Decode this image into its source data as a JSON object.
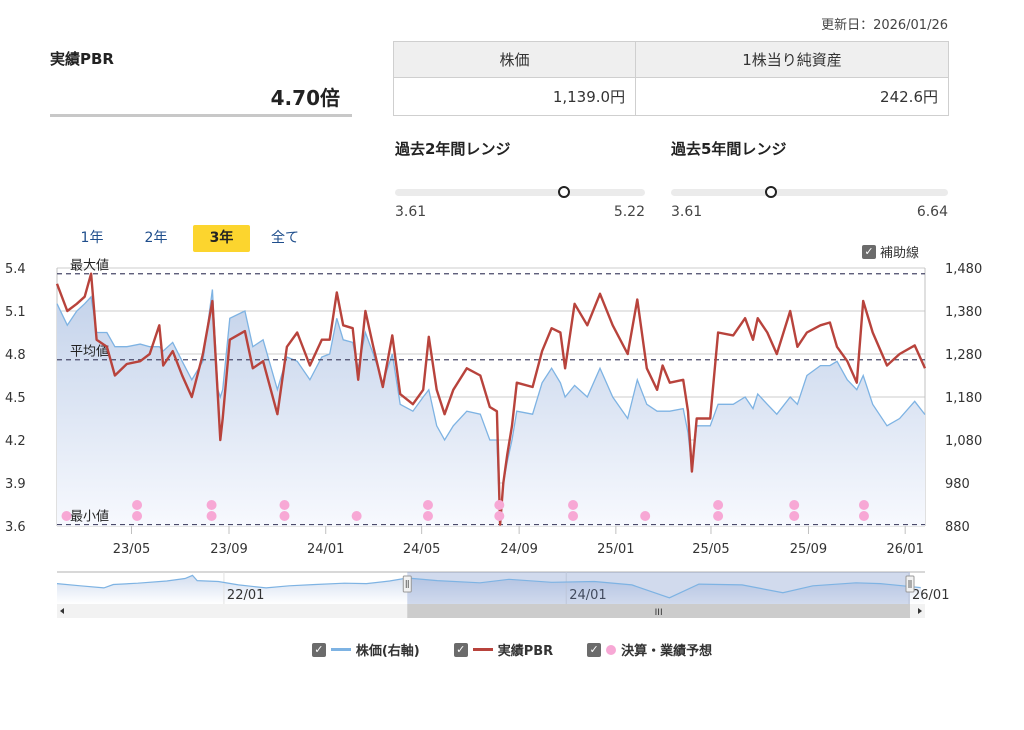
{
  "updated": "更新日：2026/01/26",
  "pbr": {
    "label": "実績PBR",
    "value": "4.70倍"
  },
  "info_table": {
    "headers": [
      "株価",
      "1株当り純資産"
    ],
    "values": [
      "1,139.0円",
      "242.6円"
    ]
  },
  "ranges": [
    {
      "title": "過去2年間レンジ",
      "min": "3.61",
      "max": "5.22",
      "min_value": 3.61,
      "max_value": 5.22,
      "current": 4.7
    },
    {
      "title": "過去5年間レンジ",
      "min": "3.61",
      "max": "6.64",
      "min_value": 3.61,
      "max_value": 6.64,
      "current": 4.7
    }
  ],
  "period_tabs": [
    {
      "label": "1年",
      "active": false
    },
    {
      "label": "2年",
      "active": false
    },
    {
      "label": "3年",
      "active": true
    },
    {
      "label": "全て",
      "active": false
    }
  ],
  "aux_lines": {
    "label": "補助線",
    "checked": true
  },
  "legend": [
    {
      "label": "株価(右軸)",
      "color": "#7eb3e3",
      "checked": true
    },
    {
      "label": "実績PBR",
      "color": "#b8433c",
      "checked": true
    },
    {
      "label": "決算・業績予想",
      "color": "#f7a8d5",
      "checked": true
    }
  ],
  "chart_data": {
    "type": "line",
    "x_range": [
      "2023-01-27",
      "2026-01-26"
    ],
    "x_ticks": [
      {
        "label": "23/05",
        "date": "2023-05-01"
      },
      {
        "label": "23/09",
        "date": "2023-09-01"
      },
      {
        "label": "24/01",
        "date": "2024-01-01"
      },
      {
        "label": "24/05",
        "date": "2024-05-01"
      },
      {
        "label": "24/09",
        "date": "2024-09-01"
      },
      {
        "label": "25/01",
        "date": "2025-01-01"
      },
      {
        "label": "25/05",
        "date": "2025-05-01"
      },
      {
        "label": "25/09",
        "date": "2025-09-01"
      },
      {
        "label": "26/01",
        "date": "2026-01-01"
      }
    ],
    "y_left": {
      "ylim": [
        3.6,
        5.4
      ],
      "ticks": [
        "3.6",
        "3.9",
        "4.2",
        "4.5",
        "4.8",
        "5.1",
        "5.4"
      ]
    },
    "y_right": {
      "ylim": [
        880,
        1480
      ],
      "ticks": [
        "880",
        "980",
        "1,080",
        "1,180",
        "1,280",
        "1,380",
        "1,480"
      ]
    },
    "grid": true,
    "reference_lines": [
      {
        "label": "最大値",
        "value": 5.36
      },
      {
        "label": "平均値",
        "value": 4.76
      },
      {
        "label": "最小値",
        "value": 3.61
      }
    ],
    "x": [
      "2023-01-27",
      "2023-02-09",
      "2023-02-21",
      "2023-03-03",
      "2023-03-11",
      "2023-03-18",
      "2023-03-31",
      "2023-04-10",
      "2023-04-25",
      "2023-05-12",
      "2023-05-24",
      "2023-06-05",
      "2023-06-10",
      "2023-06-22",
      "2023-07-04",
      "2023-07-16",
      "2023-07-30",
      "2023-08-11",
      "2023-08-18",
      "2023-08-21",
      "2023-08-24",
      "2023-09-02",
      "2023-09-21",
      "2023-10-01",
      "2023-10-14",
      "2023-11-01",
      "2023-11-13",
      "2023-11-26",
      "2023-12-12",
      "2023-12-27",
      "2024-01-06",
      "2024-01-15",
      "2024-01-23",
      "2024-02-04",
      "2024-02-11",
      "2024-02-20",
      "2024-03-01",
      "2024-03-13",
      "2024-03-25",
      "2024-04-04",
      "2024-04-20",
      "2024-05-03",
      "2024-05-10",
      "2024-05-20",
      "2024-05-30",
      "2024-06-10",
      "2024-06-27",
      "2024-07-14",
      "2024-07-26",
      "2024-08-04",
      "2024-08-08",
      "2024-08-12",
      "2024-08-17",
      "2024-08-23",
      "2024-08-29",
      "2024-09-18",
      "2024-09-30",
      "2024-10-12",
      "2024-10-23",
      "2024-10-29",
      "2024-11-10",
      "2024-11-26",
      "2024-12-12",
      "2024-12-28",
      "2025-01-16",
      "2025-01-28",
      "2025-02-09",
      "2025-02-22",
      "2025-03-01",
      "2025-03-10",
      "2025-03-27",
      "2025-04-02",
      "2025-04-07",
      "2025-04-13",
      "2025-04-30",
      "2025-05-10",
      "2025-05-29",
      "2025-06-13",
      "2025-06-23",
      "2025-06-29",
      "2025-07-11",
      "2025-07-23",
      "2025-08-09",
      "2025-08-18",
      "2025-08-30",
      "2025-09-16",
      "2025-09-28",
      "2025-10-07",
      "2025-10-20",
      "2025-11-01",
      "2025-11-09",
      "2025-11-21",
      "2025-12-09",
      "2025-12-25",
      "2026-01-13",
      "2026-01-26"
    ],
    "series": [
      {
        "name": "実績PBR",
        "axis": "left",
        "color": "#b8433c",
        "values": [
          5.29,
          5.1,
          5.15,
          5.2,
          5.36,
          4.9,
          4.85,
          4.65,
          4.73,
          4.75,
          4.8,
          5.0,
          4.72,
          4.82,
          4.65,
          4.5,
          4.8,
          5.17,
          4.5,
          4.2,
          4.35,
          4.9,
          4.96,
          4.7,
          4.75,
          4.38,
          4.85,
          4.95,
          4.72,
          4.9,
          4.9,
          5.23,
          5.0,
          4.98,
          4.62,
          5.1,
          4.85,
          4.57,
          4.93,
          4.52,
          4.45,
          4.55,
          4.92,
          4.55,
          4.38,
          4.55,
          4.7,
          4.65,
          4.43,
          4.4,
          3.61,
          3.9,
          4.1,
          4.3,
          4.6,
          4.57,
          4.82,
          4.98,
          4.95,
          4.7,
          5.15,
          5.0,
          5.22,
          5.0,
          4.8,
          5.18,
          4.7,
          4.55,
          4.72,
          4.6,
          4.62,
          4.4,
          3.98,
          4.35,
          4.35,
          4.95,
          4.93,
          5.05,
          4.9,
          5.05,
          4.95,
          4.8,
          5.1,
          4.85,
          4.95,
          5.0,
          5.02,
          4.85,
          4.75,
          4.6,
          5.17,
          4.95,
          4.72,
          4.8,
          4.86,
          4.7
        ]
      },
      {
        "name": "株価(右軸)",
        "axis": "right",
        "color": "#7eb3e3",
        "values": [
          1397,
          1347,
          1380,
          1397,
          1413,
          1330,
          1330,
          1297,
          1297,
          1303,
          1297,
          1297,
          1287,
          1307,
          1263,
          1220,
          1263,
          1430,
          1197,
          1180,
          1197,
          1363,
          1380,
          1297,
          1313,
          1197,
          1273,
          1263,
          1220,
          1273,
          1280,
          1363,
          1313,
          1307,
          1247,
          1330,
          1280,
          1213,
          1280,
          1163,
          1147,
          1180,
          1197,
          1113,
          1080,
          1113,
          1147,
          1140,
          1080,
          1080,
          887,
          980,
          1030,
          1080,
          1147,
          1140,
          1213,
          1247,
          1213,
          1180,
          1207,
          1180,
          1247,
          1180,
          1130,
          1220,
          1163,
          1147,
          1147,
          1147,
          1153,
          1097,
          1013,
          1113,
          1113,
          1163,
          1163,
          1180,
          1153,
          1187,
          1163,
          1140,
          1180,
          1163,
          1230,
          1253,
          1253,
          1263,
          1220,
          1197,
          1230,
          1163,
          1113,
          1130,
          1170,
          1139
        ]
      }
    ],
    "events": [
      {
        "date": "2023-02-08",
        "count": 1
      },
      {
        "date": "2023-05-08",
        "count": 2
      },
      {
        "date": "2023-08-10",
        "count": 2
      },
      {
        "date": "2023-11-10",
        "count": 2
      },
      {
        "date": "2024-02-09",
        "count": 1
      },
      {
        "date": "2024-05-09",
        "count": 2
      },
      {
        "date": "2024-08-07",
        "count": 2
      },
      {
        "date": "2024-11-08",
        "count": 2
      },
      {
        "date": "2025-02-07",
        "count": 1
      },
      {
        "date": "2025-05-10",
        "count": 2
      },
      {
        "date": "2025-08-14",
        "count": 2
      },
      {
        "date": "2025-11-10",
        "count": 2
      }
    ],
    "navigator": {
      "x_range": [
        "2021-01-10",
        "2026-01-26"
      ],
      "ticks": [
        {
          "label": "22/01",
          "date": "2022-01-01"
        },
        {
          "label": "24/01",
          "date": "2024-01-01"
        },
        {
          "label": "26/01",
          "date": "2026-01-01"
        }
      ],
      "selection": [
        "2023-01-27",
        "2026-01-26"
      ],
      "x": [
        "2021-01-10",
        "2021-03-01",
        "2021-04-20",
        "2021-05-10",
        "2021-07-01",
        "2021-09-01",
        "2021-10-10",
        "2021-10-26",
        "2021-11-05",
        "2021-12-20",
        "2022-02-01",
        "2022-04-01",
        "2022-05-20",
        "2022-07-15",
        "2022-09-15",
        "2022-11-01",
        "2022-12-20",
        "2023-01-27",
        "2023-04-01",
        "2023-07-01",
        "2023-09-01",
        "2023-12-01",
        "2024-03-01",
        "2024-05-20",
        "2024-08-08",
        "2024-10-10",
        "2025-01-10",
        "2025-04-07",
        "2025-06-10",
        "2025-09-10",
        "2025-11-01",
        "2026-01-26"
      ],
      "values": [
        1230,
        1180,
        1130,
        1210,
        1240,
        1290,
        1350,
        1420,
        1300,
        1280,
        1200,
        1130,
        1180,
        1210,
        1240,
        1230,
        1290,
        1360,
        1300,
        1250,
        1330,
        1260,
        1280,
        1200,
        900,
        1220,
        1200,
        1020,
        1180,
        1250,
        1230,
        1139
      ]
    }
  }
}
